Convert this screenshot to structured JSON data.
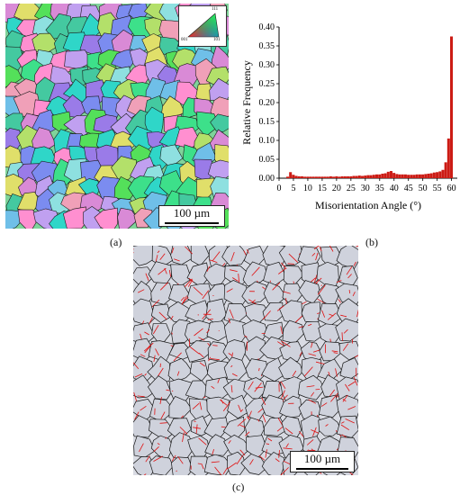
{
  "panel_a": {
    "label": "(a)",
    "scale_bar": "100 µm",
    "ipf_key": {
      "top": "111",
      "left": "001",
      "right": "101"
    }
  },
  "panel_b": {
    "label": "(b)"
  },
  "panel_c": {
    "label": "(c)",
    "scale_bar": "100 µm"
  },
  "chart_data": {
    "type": "bar",
    "xlabel": "Misorientation Angle (°)",
    "ylabel": "Relative Frequency",
    "xlim": [
      0,
      62
    ],
    "ylim": [
      0,
      0.4
    ],
    "xticks": [
      0,
      5,
      10,
      15,
      20,
      25,
      30,
      35,
      40,
      45,
      50,
      55,
      60
    ],
    "yticks": [
      "0.00",
      "0.05",
      "0.10",
      "0.15",
      "0.20",
      "0.25",
      "0.30",
      "0.35",
      "0.40"
    ],
    "bar_color": "#cc1b14",
    "x": [
      3,
      4,
      5,
      6,
      7,
      8,
      9,
      10,
      11,
      12,
      13,
      14,
      15,
      16,
      17,
      18,
      19,
      20,
      21,
      22,
      23,
      24,
      25,
      26,
      27,
      28,
      29,
      30,
      31,
      32,
      33,
      34,
      35,
      36,
      37,
      38,
      39,
      40,
      41,
      42,
      43,
      44,
      45,
      46,
      47,
      48,
      49,
      50,
      51,
      52,
      53,
      54,
      55,
      56,
      57,
      58,
      59,
      60
    ],
    "values": [
      0.004,
      0.016,
      0.009,
      0.006,
      0.005,
      0.005,
      0.004,
      0.004,
      0.004,
      0.004,
      0.004,
      0.004,
      0.004,
      0.004,
      0.004,
      0.005,
      0.004,
      0.005,
      0.004,
      0.005,
      0.005,
      0.005,
      0.005,
      0.006,
      0.006,
      0.007,
      0.006,
      0.007,
      0.008,
      0.008,
      0.009,
      0.01,
      0.01,
      0.012,
      0.013,
      0.017,
      0.019,
      0.014,
      0.011,
      0.01,
      0.01,
      0.01,
      0.009,
      0.009,
      0.009,
      0.01,
      0.01,
      0.01,
      0.011,
      0.012,
      0.013,
      0.015,
      0.016,
      0.018,
      0.022,
      0.042,
      0.105,
      0.375
    ]
  }
}
